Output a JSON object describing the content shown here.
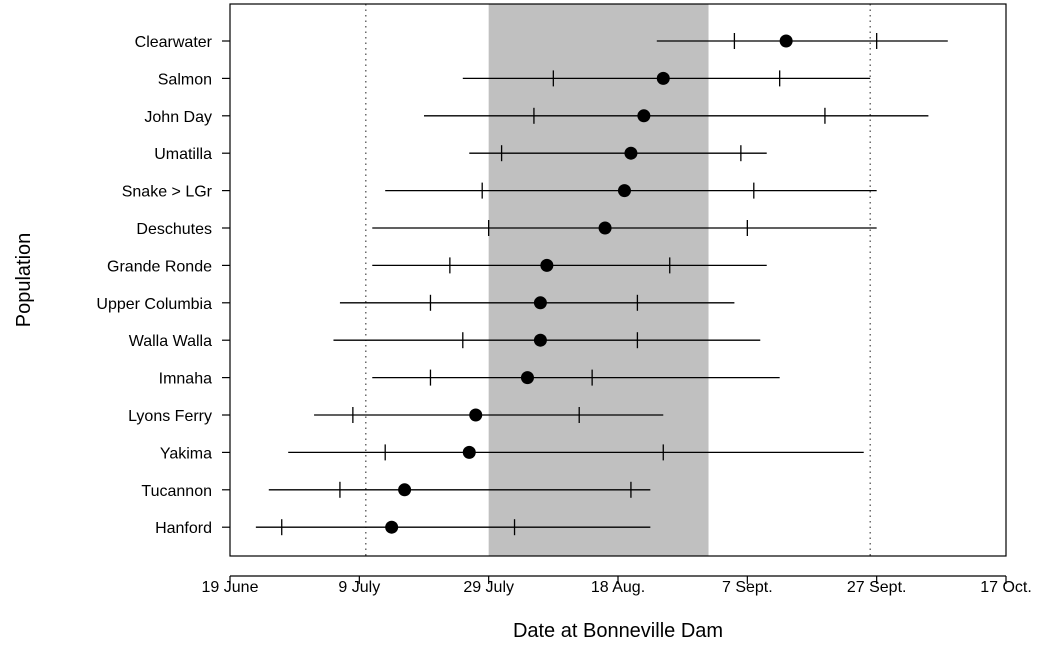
{
  "chart_data": {
    "type": "interval",
    "xlabel": "Date at Bonneville Dam",
    "ylabel": "Population",
    "xlim": [
      "2000-06-19",
      "2000-10-17"
    ],
    "x_ticks": [
      {
        "date": "2000-06-19",
        "label": "19 June"
      },
      {
        "date": "2000-07-09",
        "label": "9 July"
      },
      {
        "date": "2000-07-29",
        "label": "29 July"
      },
      {
        "date": "2000-08-18",
        "label": "18 Aug."
      },
      {
        "date": "2000-09-07",
        "label": "7 Sept."
      },
      {
        "date": "2000-09-27",
        "label": "27 Sept."
      },
      {
        "date": "2000-10-17",
        "label": "17 Oct."
      }
    ],
    "shaded_region": {
      "start": "2000-07-29",
      "end": "2000-09-01",
      "color": "#c0c0c0"
    },
    "reference_lines": [
      "2000-07-10",
      "2000-09-26"
    ],
    "grid": false,
    "populations": [
      {
        "name": "Clearwater",
        "range_start": "2000-08-24",
        "p_low": "2000-09-05",
        "median": "2000-09-13",
        "p_high": "2000-09-27",
        "range_end": "2000-10-08"
      },
      {
        "name": "Salmon",
        "range_start": "2000-07-25",
        "p_low": "2000-08-08",
        "median": "2000-08-25",
        "p_high": "2000-09-12",
        "range_end": "2000-09-26"
      },
      {
        "name": "John Day",
        "range_start": "2000-07-19",
        "p_low": "2000-08-05",
        "median": "2000-08-22",
        "p_high": "2000-09-19",
        "range_end": "2000-10-05"
      },
      {
        "name": "Umatilla",
        "range_start": "2000-07-26",
        "p_low": "2000-07-31",
        "median": "2000-08-20",
        "p_high": "2000-09-06",
        "range_end": "2000-09-10"
      },
      {
        "name": "Snake > LGr",
        "range_start": "2000-07-13",
        "p_low": "2000-07-28",
        "median": "2000-08-19",
        "p_high": "2000-09-08",
        "range_end": "2000-09-27"
      },
      {
        "name": "Deschutes",
        "range_start": "2000-07-11",
        "p_low": "2000-07-29",
        "median": "2000-08-16",
        "p_high": "2000-09-07",
        "range_end": "2000-09-27"
      },
      {
        "name": "Grande Ronde",
        "range_start": "2000-07-11",
        "p_low": "2000-07-23",
        "median": "2000-08-07",
        "p_high": "2000-08-26",
        "range_end": "2000-09-10"
      },
      {
        "name": "Upper Columbia",
        "range_start": "2000-07-06",
        "p_low": "2000-07-20",
        "median": "2000-08-06",
        "p_high": "2000-08-21",
        "range_end": "2000-09-05"
      },
      {
        "name": "Walla Walla",
        "range_start": "2000-07-05",
        "p_low": "2000-07-25",
        "median": "2000-08-06",
        "p_high": "2000-08-21",
        "range_end": "2000-09-09"
      },
      {
        "name": "Imnaha",
        "range_start": "2000-07-11",
        "p_low": "2000-07-20",
        "median": "2000-08-04",
        "p_high": "2000-08-14",
        "range_end": "2000-09-12"
      },
      {
        "name": "Lyons Ferry",
        "range_start": "2000-07-02",
        "p_low": "2000-07-08",
        "median": "2000-07-27",
        "p_high": "2000-08-12",
        "range_end": "2000-08-25"
      },
      {
        "name": "Yakima",
        "range_start": "2000-06-28",
        "p_low": "2000-07-13",
        "median": "2000-07-26",
        "p_high": "2000-08-25",
        "range_end": "2000-09-25"
      },
      {
        "name": "Tucannon",
        "range_start": "2000-06-25",
        "p_low": "2000-07-06",
        "median": "2000-07-16",
        "p_high": "2000-08-20",
        "range_end": "2000-08-23"
      },
      {
        "name": "Hanford",
        "range_start": "2000-06-23",
        "p_low": "2000-06-27",
        "median": "2000-07-14",
        "p_high": "2000-08-02",
        "range_end": "2000-08-23"
      }
    ]
  }
}
